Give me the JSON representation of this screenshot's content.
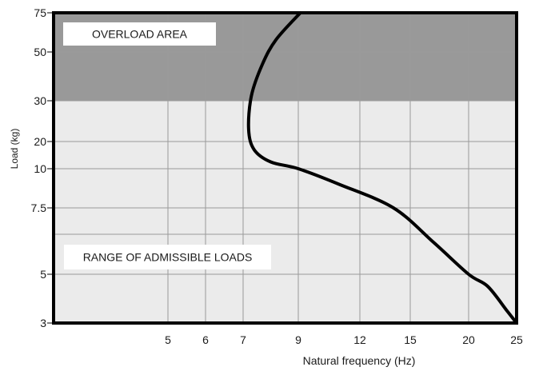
{
  "chart_data": {
    "type": "line",
    "title": "",
    "xlabel": "Natural frequency (Hz)",
    "ylabel": "Load (kg)",
    "x_ticks": [
      5,
      6,
      7,
      9,
      12,
      15,
      20,
      25
    ],
    "y_ticks": [
      3,
      5,
      7.5,
      10,
      20,
      30,
      50,
      75
    ],
    "xlim": [
      1.2,
      25
    ],
    "ylim": [
      3,
      75
    ],
    "grid": true,
    "regions": [
      {
        "label": "OVERLOAD AREA",
        "y_from": 30,
        "y_to": 75,
        "color": "#999999"
      },
      {
        "label": "RANGE OF ADMISSIBLE LOADS",
        "y_from": 3,
        "y_to": 30,
        "color": "#ebebeb"
      }
    ],
    "series": [
      {
        "color": "#000000",
        "points": [
          {
            "x": 25,
            "y": 3
          },
          {
            "x": 24,
            "y": 3.5
          },
          {
            "x": 22,
            "y": 4.5
          },
          {
            "x": 20,
            "y": 5
          },
          {
            "x": 17,
            "y": 6.2
          },
          {
            "x": 14,
            "y": 7.5
          },
          {
            "x": 11,
            "y": 9
          },
          {
            "x": 9,
            "y": 10
          },
          {
            "x": 8,
            "y": 12.5
          },
          {
            "x": 7.4,
            "y": 17
          },
          {
            "x": 7.2,
            "y": 23
          },
          {
            "x": 7.3,
            "y": 32
          },
          {
            "x": 7.7,
            "y": 45
          },
          {
            "x": 8.2,
            "y": 58
          },
          {
            "x": 9.1,
            "y": 75
          }
        ]
      }
    ]
  }
}
